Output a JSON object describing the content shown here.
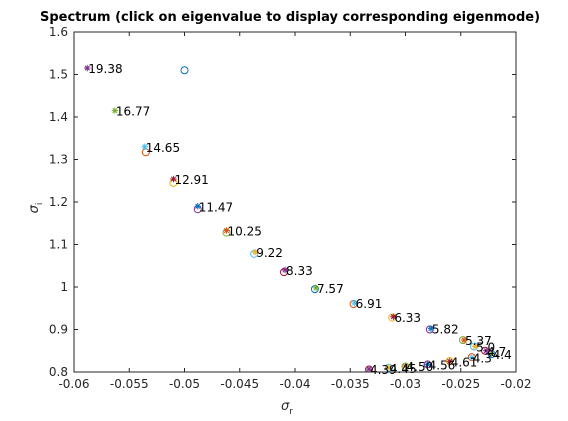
{
  "chart_data": {
    "type": "scatter",
    "title": "Spectrum (click on eigenvalue to display corresponding eigenmode)",
    "xlabel_sym": "σ",
    "xlabel_sub": "r",
    "ylabel_sym": "σ",
    "ylabel_sub": "i",
    "xlim": [
      -0.06,
      -0.02
    ],
    "ylim": [
      0.8,
      1.6
    ],
    "xticks": [
      -0.06,
      -0.055,
      -0.05,
      -0.045,
      -0.04,
      -0.035,
      -0.03,
      -0.025,
      -0.02
    ],
    "xtick_labels": [
      "-0.06",
      "-0.055",
      "-0.05",
      "-0.045",
      "-0.04",
      "-0.035",
      "-0.03",
      "-0.025",
      "-0.02"
    ],
    "yticks": [
      0.8,
      0.9,
      1.0,
      1.1,
      1.2,
      1.3,
      1.4,
      1.5,
      1.6
    ],
    "ytick_labels": [
      "0.8",
      "0.9",
      "1",
      "1.1",
      "1.2",
      "1.3",
      "1.4",
      "1.5",
      "1.6"
    ],
    "grid": false,
    "colors": [
      "#0072bd",
      "#d95319",
      "#edb120",
      "#7e2f8e",
      "#77ac30",
      "#4dbeee",
      "#a2142f"
    ],
    "circles": [
      {
        "x": -0.05,
        "y": 1.51
      },
      {
        "x": -0.0535,
        "y": 1.317
      },
      {
        "x": -0.051,
        "y": 1.245
      },
      {
        "x": -0.0488,
        "y": 1.183
      },
      {
        "x": -0.0462,
        "y": 1.128
      },
      {
        "x": -0.0437,
        "y": 1.078
      },
      {
        "x": -0.041,
        "y": 1.035
      },
      {
        "x": -0.0382,
        "y": 0.995
      },
      {
        "x": -0.0347,
        "y": 0.96
      },
      {
        "x": -0.0312,
        "y": 0.928
      },
      {
        "x": -0.0278,
        "y": 0.9
      },
      {
        "x": -0.0248,
        "y": 0.875
      },
      {
        "x": -0.0238,
        "y": 0.86
      },
      {
        "x": -0.0228,
        "y": 0.85
      },
      {
        "x": -0.0222,
        "y": 0.842
      },
      {
        "x": -0.024,
        "y": 0.835
      },
      {
        "x": -0.026,
        "y": 0.826
      },
      {
        "x": -0.028,
        "y": 0.818
      },
      {
        "x": -0.03,
        "y": 0.813
      },
      {
        "x": -0.0315,
        "y": 0.81
      },
      {
        "x": -0.0333,
        "y": 0.806
      }
    ],
    "eigenvalues": [
      {
        "x": -0.0588,
        "y": 1.515,
        "label": "19.38"
      },
      {
        "x": -0.0563,
        "y": 1.415,
        "label": "16.77"
      },
      {
        "x": -0.0536,
        "y": 1.33,
        "label": "14.65"
      },
      {
        "x": -0.051,
        "y": 1.254,
        "label": "12.91"
      },
      {
        "x": -0.0488,
        "y": 1.19,
        "label": "11.47"
      },
      {
        "x": -0.0462,
        "y": 1.133,
        "label": "10.25"
      },
      {
        "x": -0.0436,
        "y": 1.082,
        "label": "9.22"
      },
      {
        "x": -0.0409,
        "y": 1.04,
        "label": "8.33"
      },
      {
        "x": -0.0381,
        "y": 0.998,
        "label": "7.57"
      },
      {
        "x": -0.0346,
        "y": 0.962,
        "label": "6.91"
      },
      {
        "x": -0.0311,
        "y": 0.93,
        "label": "6.33"
      },
      {
        "x": -0.0277,
        "y": 0.902,
        "label": "5.82"
      },
      {
        "x": -0.0247,
        "y": 0.875,
        "label": "5.37"
      },
      {
        "x": -0.0237,
        "y": 0.86,
        "label": "5.0"
      },
      {
        "x": -0.0227,
        "y": 0.85,
        "label": "4.7"
      },
      {
        "x": -0.0222,
        "y": 0.842,
        "label": "4.4"
      },
      {
        "x": -0.024,
        "y": 0.834,
        "label": "4.3"
      },
      {
        "x": -0.026,
        "y": 0.825,
        "label": "4.61"
      },
      {
        "x": -0.028,
        "y": 0.818,
        "label": "4.56"
      },
      {
        "x": -0.03,
        "y": 0.814,
        "label": "4.50"
      },
      {
        "x": -0.0315,
        "y": 0.81,
        "label": "4.45"
      },
      {
        "x": -0.0333,
        "y": 0.807,
        "label": "4.39"
      }
    ]
  }
}
